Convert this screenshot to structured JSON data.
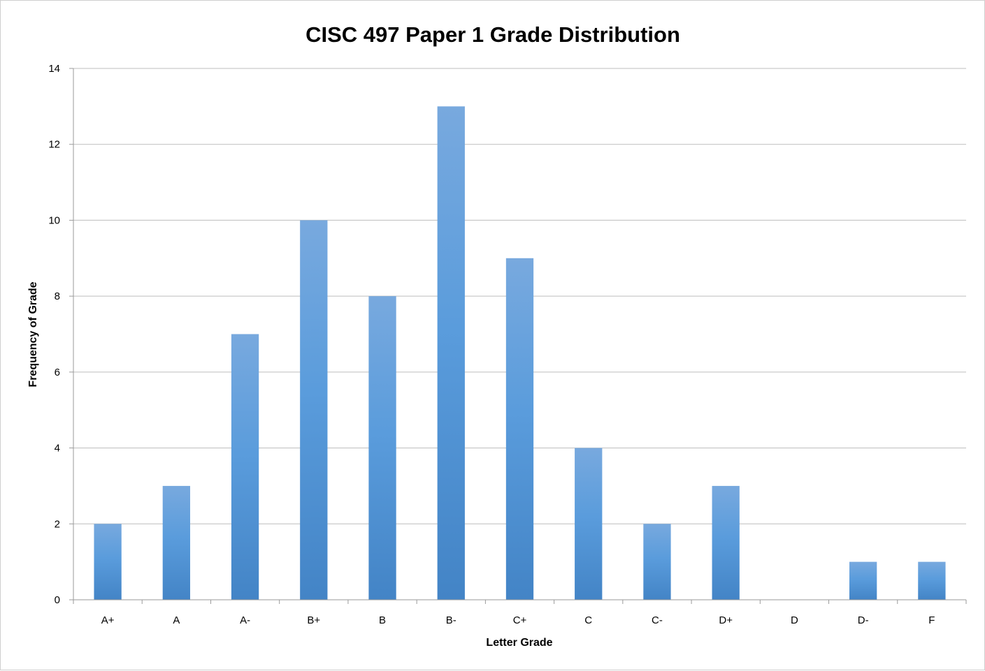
{
  "chart_data": {
    "type": "bar",
    "title": "CISC 497 Paper 1 Grade Distribution",
    "xlabel": "Letter Grade",
    "ylabel": "Frequency of Grade",
    "categories": [
      "A+",
      "A",
      "A-",
      "B+",
      "B",
      "B-",
      "C+",
      "C",
      "C-",
      "D+",
      "D",
      "D-",
      "F"
    ],
    "values": [
      2,
      3,
      7,
      10,
      8,
      13,
      9,
      4,
      2,
      3,
      0,
      1,
      1
    ],
    "ylim": [
      0,
      14
    ],
    "yticks": [
      "0",
      "2",
      "4",
      "6",
      "8",
      "10",
      "12",
      "14"
    ],
    "grid": true,
    "legend": "none",
    "colors": {
      "bar_top": "#78a9de",
      "bar_mid": "#5a9cdc",
      "bar_bottom": "#4384c6",
      "grid": "#bdbdbd",
      "axis": "#9a9a9a"
    }
  }
}
